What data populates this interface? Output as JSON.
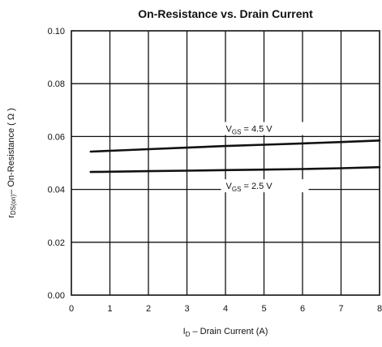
{
  "chart_data": {
    "type": "line",
    "title": "On-Resistance vs. Drain Current",
    "xlabel": {
      "symbol_main": "I",
      "symbol_sub": "D",
      "text": " – Drain Current (A)"
    },
    "ylabel": {
      "symbol_main": "r",
      "symbol_sub": "DS(on)",
      "text": "– On-Resistance ( Ω )"
    },
    "xlim": [
      0,
      8
    ],
    "ylim": [
      0,
      0.1
    ],
    "xticks": [
      0,
      1,
      2,
      3,
      4,
      5,
      6,
      7,
      8
    ],
    "xtick_labels": [
      "0",
      "1",
      "2",
      "3",
      "4",
      "5",
      "6",
      "7",
      "8"
    ],
    "yticks": [
      0,
      0.02,
      0.04,
      0.06,
      0.08,
      0.1
    ],
    "ytick_labels": [
      "0.00",
      "0.02",
      "0.04",
      "0.06",
      "0.08",
      "0.10"
    ],
    "grid": true,
    "series": [
      {
        "name": "VGS = 4.5 V",
        "label": {
          "main": "V",
          "sub": "GS",
          "rest": " = 4.5 V"
        },
        "x": [
          0.5,
          1,
          2,
          3,
          4,
          5,
          6,
          7,
          8
        ],
        "y": [
          0.0543,
          0.0546,
          0.0552,
          0.0558,
          0.0564,
          0.0569,
          0.0574,
          0.0579,
          0.0585
        ]
      },
      {
        "name": "VGS = 2.5 V",
        "label": {
          "main": "V",
          "sub": "GS",
          "rest": " = 2.5 V"
        },
        "x": [
          0.5,
          1,
          2,
          3,
          4,
          5,
          6,
          7,
          8
        ],
        "y": [
          0.0466,
          0.0467,
          0.0469,
          0.0471,
          0.0473,
          0.0475,
          0.0477,
          0.048,
          0.0484
        ]
      }
    ],
    "colors": {
      "line": "#111111",
      "grid": "#111111",
      "background": "#ffffff"
    }
  }
}
